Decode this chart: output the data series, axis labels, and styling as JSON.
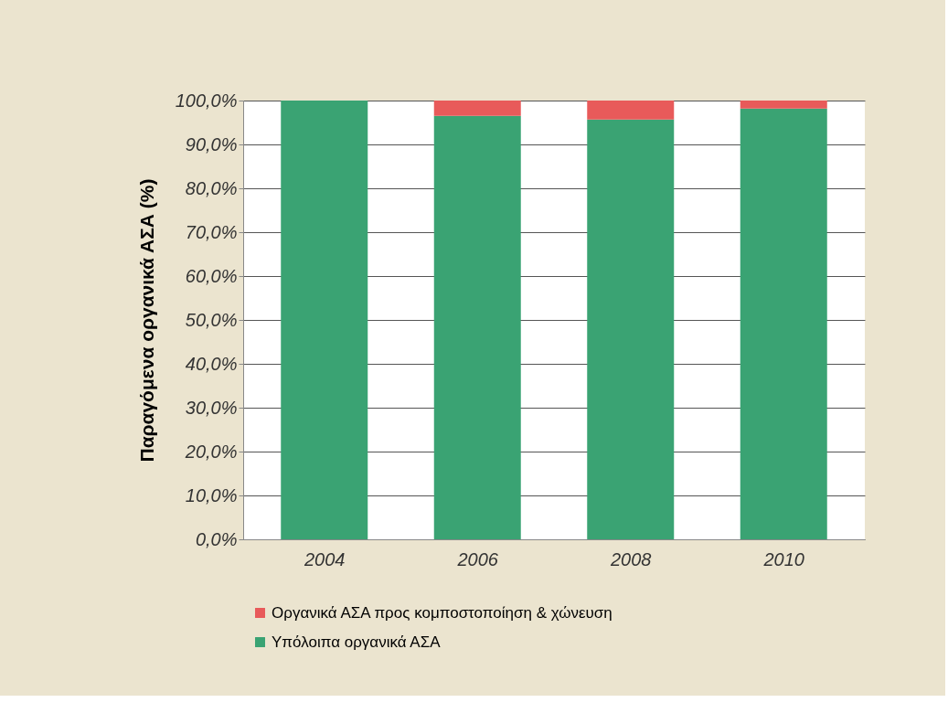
{
  "chart_data": {
    "type": "bar",
    "ylabel": "Παραγόμενα οργανικά ΑΣΑ (%)",
    "categories": [
      "2004",
      "2006",
      "2008",
      "2010"
    ],
    "stacked": true,
    "series": [
      {
        "name": "Υπόλοιπα οργανικά ΑΣΑ",
        "color": "#3aa373",
        "values": [
          100,
          96.5,
          95.7,
          98.2
        ]
      },
      {
        "name": "Οργανικά ΑΣΑ προς κομποστοποίηση & χώνευση",
        "color": "#e85a5a",
        "values": [
          0,
          3.5,
          4.3,
          1.8
        ]
      }
    ],
    "ylim": [
      0,
      100
    ],
    "yticks": [
      {
        "value": 0,
        "label": "0,0%"
      },
      {
        "value": 10,
        "label": "10,0%"
      },
      {
        "value": 20,
        "label": "20,0%"
      },
      {
        "value": 30,
        "label": "30,0%"
      },
      {
        "value": 40,
        "label": "40,0%"
      },
      {
        "value": 50,
        "label": "50,0%"
      },
      {
        "value": 60,
        "label": "60,0%"
      },
      {
        "value": 70,
        "label": "70,0%"
      },
      {
        "value": 80,
        "label": "80,0%"
      },
      {
        "value": 90,
        "label": "90,0%"
      },
      {
        "value": 100,
        "label": "100,0%"
      }
    ],
    "grid": "y",
    "legend": "bottom"
  }
}
